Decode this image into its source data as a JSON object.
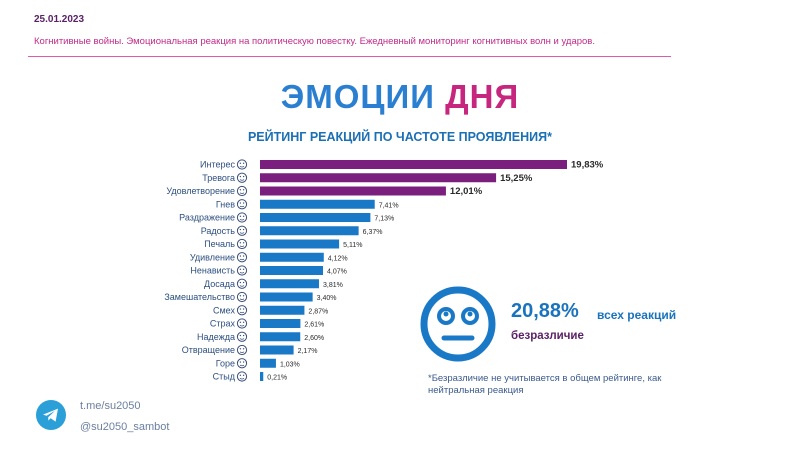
{
  "header": {
    "date": "25.01.2023",
    "subtitle": "Когнитивные войны. Эмоциональная реакция на политическую повестку. Ежедневный мониторинг когнитивных волн и ударов."
  },
  "title": {
    "part1": "ЭМОЦИИ",
    "part2": "ДНЯ"
  },
  "chart_data": {
    "type": "bar",
    "orientation": "horizontal",
    "title": "РЕЙТИНГ РЕАКЦИЙ ПО ЧАСТОТЕ ПРОЯВЛЕНИЯ*",
    "categories": [
      "Интерес",
      "Тревога",
      "Удовлетворение",
      "Гнев",
      "Раздражение",
      "Радость",
      "Печаль",
      "Удивление",
      "Ненависть",
      "Досада",
      "Замешательство",
      "Смех",
      "Страх",
      "Надежда",
      "Отвращение",
      "Горе",
      "Стыд"
    ],
    "values": [
      19.83,
      15.25,
      12.01,
      7.41,
      7.13,
      6.37,
      5.11,
      4.12,
      4.07,
      3.81,
      3.4,
      2.87,
      2.61,
      2.6,
      2.17,
      1.03,
      0.21
    ],
    "value_labels": [
      "19,83%",
      "15,25%",
      "12,01%",
      "7,41%",
      "7,13%",
      "6,37%",
      "5,11%",
      "4,12%",
      "4,07%",
      "3,81%",
      "3,40%",
      "2,87%",
      "2,61%",
      "2,60%",
      "2,17%",
      "1,03%",
      "0,21%"
    ],
    "xlim": [
      0,
      19.83
    ],
    "colors": {
      "top": "#7b1f7e",
      "rest": "#1a79c7"
    },
    "highlight_count": 3,
    "grid": false,
    "legend": "none"
  },
  "indifference": {
    "percent": "20,88%",
    "text": "всех реакций",
    "label": "безразличие",
    "icon": "neutral-face-icon"
  },
  "footnote": "*Безразличие не учитывается в общем рейтинге, как нейтральная реакция",
  "footer": {
    "channel": "t.me/su2050",
    "bot": "@su2050_sambot",
    "icon": "telegram-icon"
  }
}
